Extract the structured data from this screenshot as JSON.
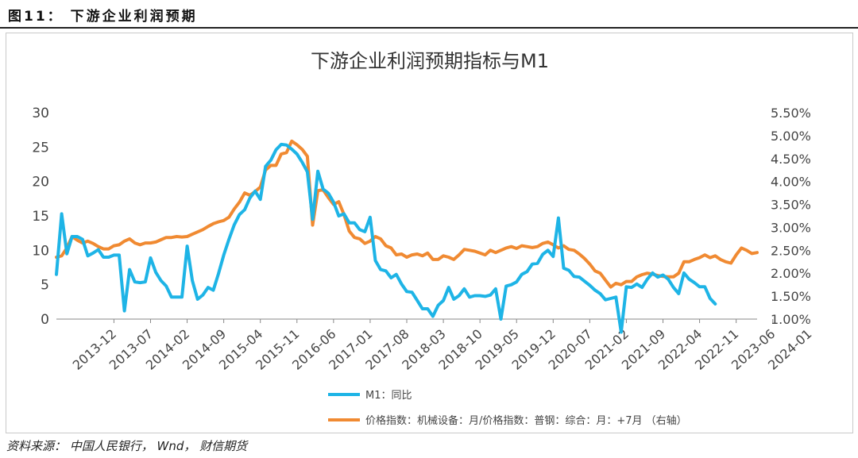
{
  "header": {
    "figure_caption": "图11：  下游企业利润预期"
  },
  "footer": {
    "source": "资料来源：  中国人民银行，  Wnd，  财信期货"
  },
  "colors": {
    "m1": "#1EB4E6",
    "price": "#F08A32",
    "axis": "#333333",
    "text": "#444444"
  },
  "chart_data": {
    "type": "line",
    "title": "下游企业利润预期指标与M1",
    "x_tick_labels": [
      "2013-12",
      "2013-07",
      "2014-02",
      "2014-09",
      "2015-04",
      "2015-11",
      "2016-06",
      "2017-01",
      "2017-08",
      "2018-03",
      "2018-10",
      "2019-05",
      "2019-12",
      "2020-07",
      "2021-02",
      "2021-09",
      "2022-04",
      "2022-11",
      "2023-06",
      "2024-01"
    ],
    "y_left": {
      "ticks": [
        "0",
        "5",
        "10",
        "15",
        "20",
        "25",
        "30"
      ],
      "ylim": [
        0,
        30
      ]
    },
    "y_right": {
      "ticks": [
        "1.00%",
        "1.50%",
        "2.00%",
        "2.50%",
        "3.00%",
        "3.50%",
        "4.00%",
        "4.50%",
        "5.00%",
        "5.50%"
      ],
      "ylim": [
        1.0,
        5.5
      ]
    },
    "legend": {
      "position": "bottom",
      "m1_label": "M1：同比",
      "price_label": "价格指数：机械设备：月/价格指数：普钢：综合：月：+7月 （右轴）"
    },
    "series": [
      {
        "name": "M1：同比",
        "axis": "left",
        "start_month": "2013-01",
        "values": [
          6.5,
          15.3,
          9.5,
          12.0,
          12.0,
          11.6,
          9.2,
          9.6,
          10.1,
          9.0,
          9.0,
          9.3,
          9.3,
          1.2,
          7.2,
          5.4,
          5.3,
          5.4,
          8.9,
          6.8,
          5.6,
          4.8,
          3.2,
          3.2,
          3.2,
          10.6,
          5.6,
          2.9,
          3.5,
          4.6,
          4.2,
          6.6,
          9.3,
          11.6,
          13.7,
          15.2,
          15.9,
          17.6,
          18.6,
          17.4,
          22.2,
          23.1,
          24.6,
          25.4,
          25.3,
          24.7,
          24.0,
          22.8,
          21.4,
          14.5,
          21.5,
          18.9,
          18.3,
          17.0,
          15.0,
          15.3,
          14.0,
          14.0,
          13.0,
          12.7,
          14.8,
          8.5,
          7.2,
          7.0,
          6.0,
          6.5,
          5.1,
          4.0,
          3.9,
          2.7,
          1.5,
          1.5,
          0.4,
          2.0,
          2.7,
          4.6,
          2.9,
          3.4,
          4.4,
          3.2,
          3.4,
          3.4,
          3.3,
          3.5,
          4.4,
          0.0,
          4.8,
          5.0,
          5.4,
          6.5,
          6.9,
          8.0,
          8.1,
          9.4,
          10.0,
          9.1,
          14.7,
          7.4,
          7.1,
          6.2,
          6.1,
          5.5,
          4.9,
          4.2,
          3.7,
          2.8,
          3.0,
          3.2,
          -1.9,
          4.7,
          4.6,
          5.1,
          4.6,
          5.8,
          6.7,
          6.1,
          6.4,
          5.8,
          4.6,
          3.7,
          6.7,
          5.8,
          5.3,
          4.7,
          4.7,
          3.0,
          2.2
        ]
      },
      {
        "name": "价格指数：机械设备：月/价格指数：普钢：综合：月：+7月 （右轴）",
        "axis": "right",
        "start_month": "2013-01",
        "values": [
          2.35,
          2.38,
          2.55,
          2.8,
          2.72,
          2.66,
          2.7,
          2.65,
          2.58,
          2.53,
          2.53,
          2.6,
          2.62,
          2.7,
          2.75,
          2.66,
          2.62,
          2.66,
          2.66,
          2.68,
          2.73,
          2.78,
          2.78,
          2.8,
          2.79,
          2.8,
          2.85,
          2.9,
          2.95,
          3.02,
          3.08,
          3.12,
          3.15,
          3.22,
          3.4,
          3.55,
          3.75,
          3.7,
          3.78,
          3.88,
          4.25,
          4.35,
          4.35,
          4.6,
          4.63,
          4.88,
          4.8,
          4.7,
          4.55,
          3.05,
          3.8,
          3.82,
          3.65,
          3.5,
          3.56,
          3.28,
          2.92,
          2.78,
          2.75,
          2.65,
          2.7,
          2.8,
          2.75,
          2.6,
          2.55,
          2.4,
          2.42,
          2.35,
          2.4,
          2.42,
          2.38,
          2.44,
          2.3,
          2.3,
          2.38,
          2.35,
          2.3,
          2.4,
          2.52,
          2.5,
          2.48,
          2.44,
          2.4,
          2.5,
          2.45,
          2.5,
          2.55,
          2.58,
          2.54,
          2.6,
          2.58,
          2.56,
          2.58,
          2.65,
          2.68,
          2.62,
          2.55,
          2.6,
          2.52,
          2.5,
          2.42,
          2.32,
          2.2,
          2.05,
          2.0,
          1.85,
          1.7,
          1.78,
          1.75,
          1.82,
          1.82,
          1.92,
          1.97,
          2.0,
          1.98,
          1.95,
          1.93,
          1.92,
          1.92,
          2.0,
          2.25,
          2.25,
          2.3,
          2.34,
          2.4,
          2.34,
          2.38,
          2.3,
          2.25,
          2.22,
          2.4,
          2.55,
          2.5,
          2.43,
          2.45
        ]
      }
    ]
  }
}
